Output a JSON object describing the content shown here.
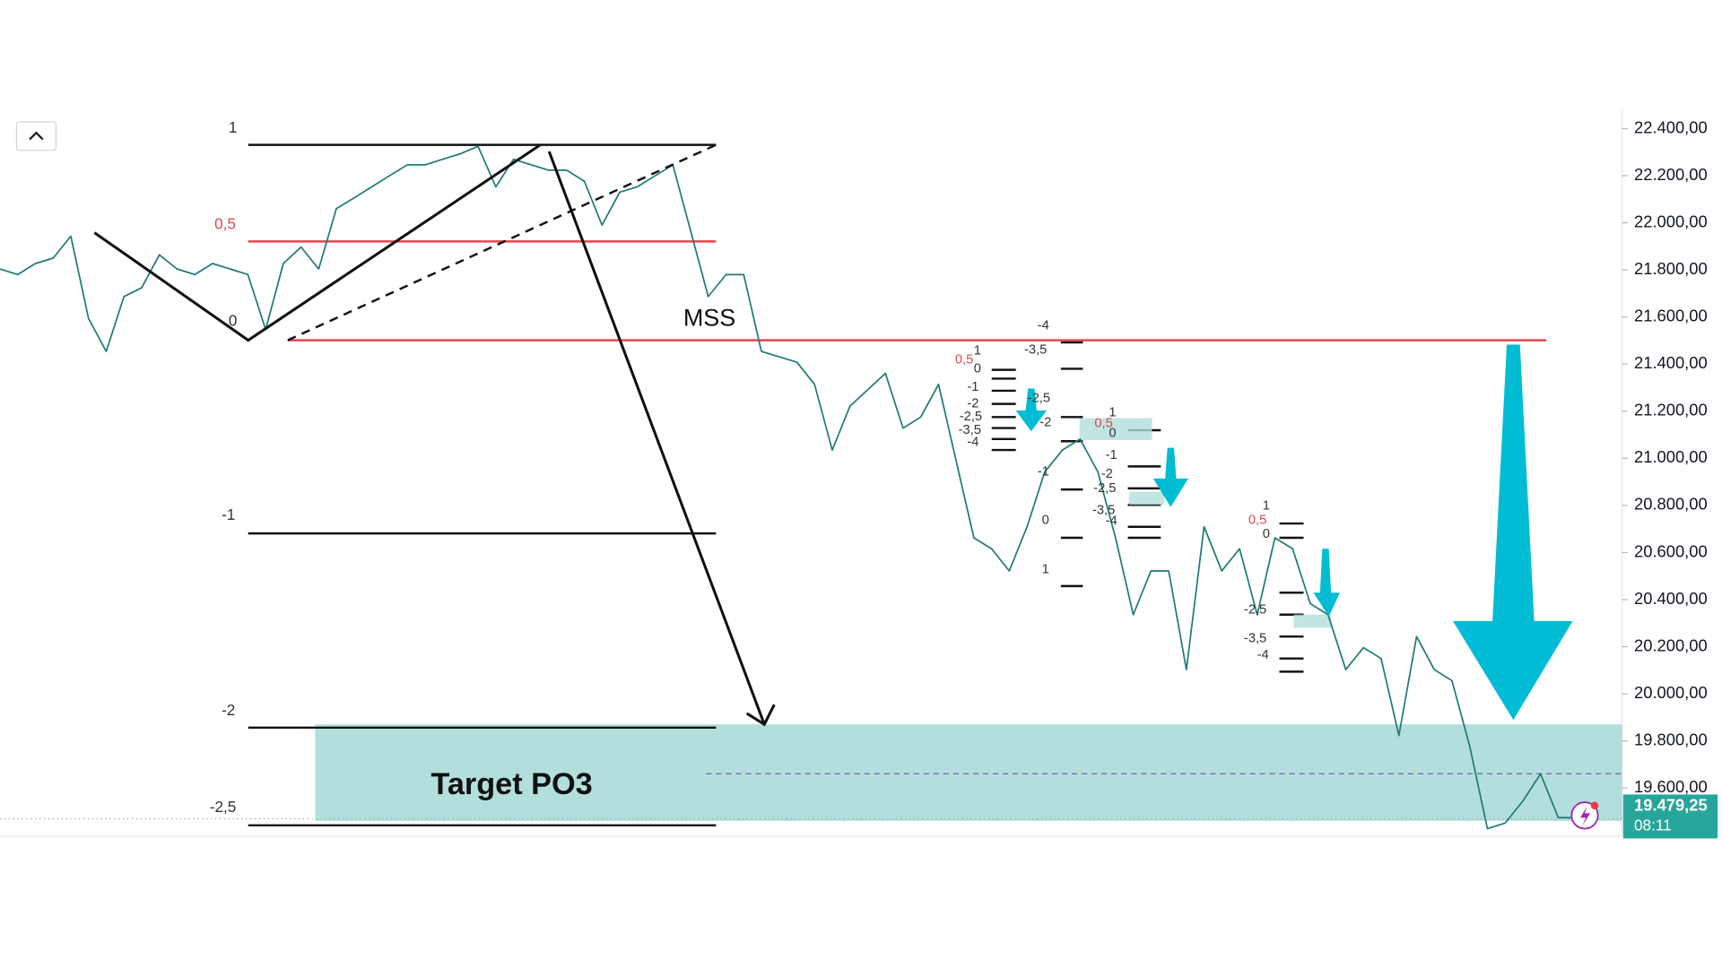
{
  "chart_data": {
    "type": "line",
    "color": "#1f7a75",
    "values": [
      21804,
      21780,
      21827,
      21850,
      21943,
      21594,
      21454,
      21687,
      21724,
      21864,
      21804,
      21780,
      21827,
      21804,
      21780,
      21547,
      21827,
      21897,
      21804,
      22060,
      22106,
      22153,
      22200,
      22246,
      22246,
      22270,
      22293,
      22325,
      22153,
      22270,
      22246,
      22223,
      22223,
      22176,
      21990,
      22130,
      22153,
      22200,
      22246,
      21967,
      21687,
      21780,
      21780,
      21454,
      21431,
      21408,
      21314,
      21035,
      21221,
      21291,
      21361,
      21128,
      21175,
      21314,
      20988,
      20662,
      20616,
      20522,
      20709,
      20942,
      21035,
      21082,
      20942,
      20662,
      20336,
      20522,
      20522,
      20103,
      20709,
      20522,
      20616,
      20336,
      20662,
      20616,
      20383,
      20336,
      20103,
      20196,
      20150,
      19823,
      20243,
      20103,
      20056,
      19777,
      19427,
      19451,
      19544,
      19660,
      19474,
      19474
    ],
    "ylim": [
      19395,
      22480
    ],
    "yticks": [
      {
        "value": 19600,
        "label": "19.600,00"
      },
      {
        "value": 19800,
        "label": "19.800,00"
      },
      {
        "value": 20000,
        "label": "20.000,00"
      },
      {
        "value": 20200,
        "label": "20.200,00"
      },
      {
        "value": 20400,
        "label": "20.400,00"
      },
      {
        "value": 20600,
        "label": "20.600,00"
      },
      {
        "value": 20800,
        "label": "20.800,00"
      },
      {
        "value": 21000,
        "label": "21.000,00"
      },
      {
        "value": 21200,
        "label": "21.200,00"
      },
      {
        "value": 21400,
        "label": "21.400,00"
      },
      {
        "value": 21600,
        "label": "21.600,00"
      },
      {
        "value": 21800,
        "label": "21.800,00"
      },
      {
        "value": 22000,
        "label": "22.000,00"
      },
      {
        "value": 22200,
        "label": "22.200,00"
      },
      {
        "value": 22400,
        "label": "22.400,00"
      }
    ],
    "last_price": {
      "value": 19479.25,
      "label": "19.479,25"
    },
    "countdown": "08:11",
    "annotations": [
      "1",
      "0,5",
      "0",
      "-1",
      "-2",
      "-2,5",
      "MSS",
      "Target PO3",
      "1",
      "0,5",
      "0",
      "-1",
      "-2",
      "-2,5",
      "-3,5",
      "-4",
      "-4",
      "-3,5",
      "-2,5",
      "-2",
      "-1",
      "0",
      "1",
      "1",
      "0,5",
      "0",
      "-1",
      "-2",
      "-2,5",
      "-3,5",
      "-4",
      "1",
      "0,5",
      "0",
      "-2,5",
      "-3,5",
      "-4"
    ]
  }
}
